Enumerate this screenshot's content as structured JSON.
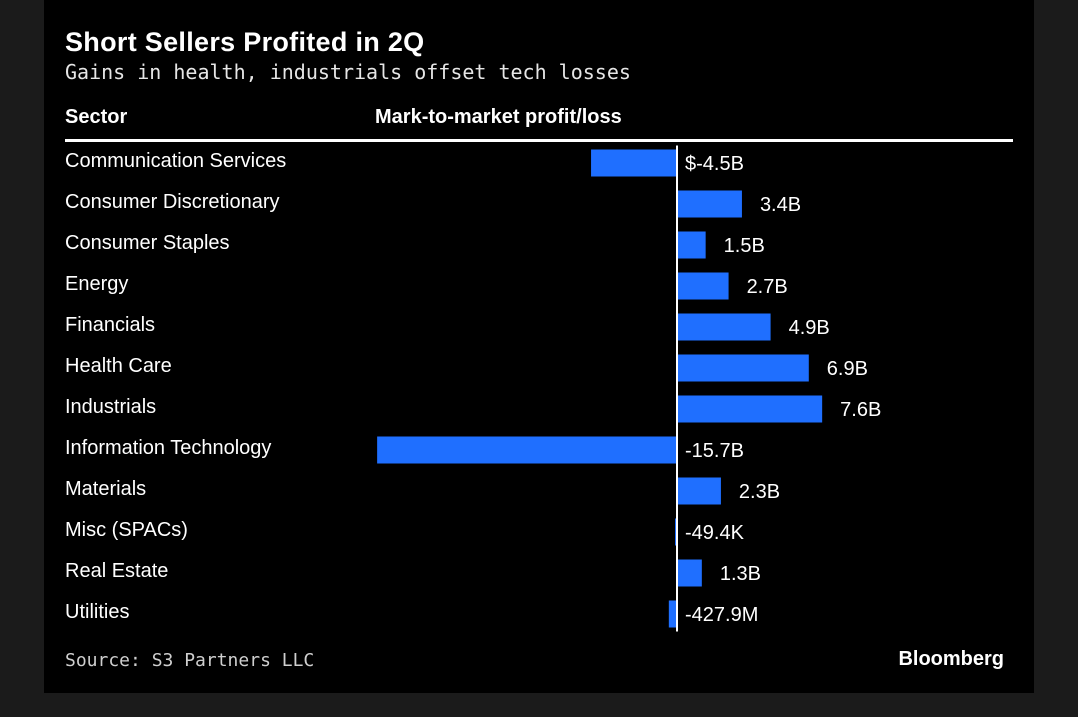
{
  "colors": {
    "bar": "#1f6fff",
    "background": "#000000",
    "frame": "#1b1b1b",
    "text": "#ffffff",
    "zero_line": "#ffffff"
  },
  "chart_data": {
    "type": "bar",
    "orientation": "horizontal",
    "title": "Short Sellers Profited in 2Q",
    "subtitle": "Gains in health, industrials offset tech losses",
    "column_headers": {
      "category": "Sector",
      "value": "Mark-to-market profit/loss"
    },
    "unit": "billion USD",
    "categories": [
      "Communication Services",
      "Consumer Discretionary",
      "Consumer Staples",
      "Energy",
      "Financials",
      "Health Care",
      "Industrials",
      "Information Technology",
      "Materials",
      "Misc (SPACs)",
      "Real Estate",
      "Utilities"
    ],
    "values": [
      -4.5,
      3.4,
      1.5,
      2.7,
      4.9,
      6.9,
      7.6,
      -15.7,
      2.3,
      -4.94e-05,
      1.3,
      -0.4279
    ],
    "data_labels": [
      "$-4.5B",
      "3.4B",
      "1.5B",
      "2.7B",
      "4.9B",
      "6.9B",
      "7.6B",
      "-15.7B",
      "2.3B",
      "-49.4K",
      "1.3B",
      "-427.9M"
    ],
    "xlim": [
      -15.7,
      16.3
    ],
    "grid": false,
    "legend": "none"
  },
  "footer": {
    "source": "Source: S3 Partners LLC",
    "brand": "Bloomberg"
  }
}
